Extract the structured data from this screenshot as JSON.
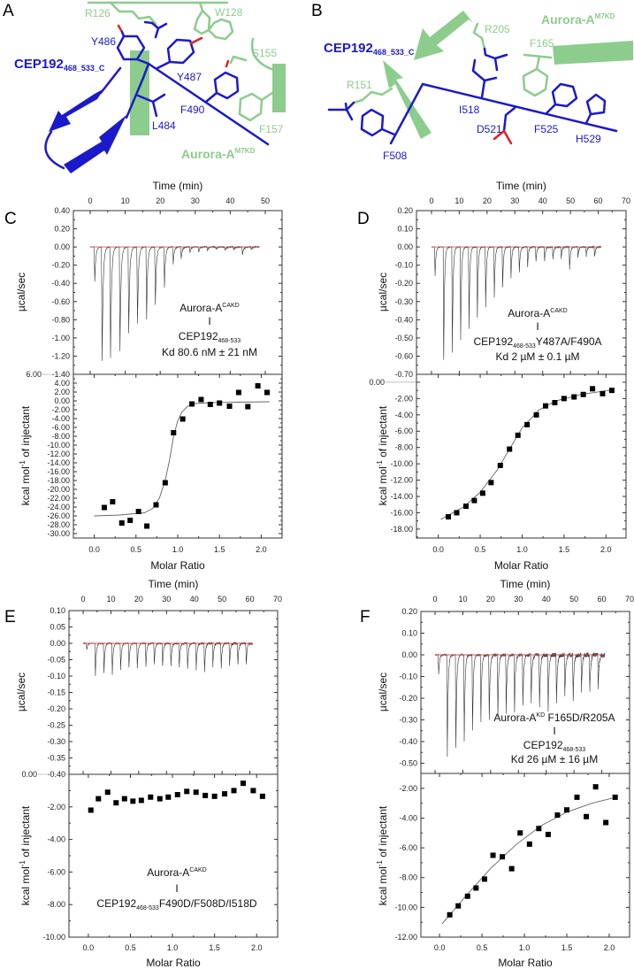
{
  "panel_a": {
    "letter": "A",
    "cep_label": "CEP192",
    "cep_sub": "468_533_C",
    "aurora_label": "Aurora-A",
    "aurora_sup": "M7KD",
    "residues": {
      "r126": "R126",
      "w128": "W128",
      "s155": "S155",
      "f157": "F157",
      "y486": "Y486",
      "y487": "Y487",
      "l484": "L484",
      "f490": "F490"
    }
  },
  "panel_b": {
    "letter": "B",
    "cep_label": "CEP192",
    "cep_sub": "468_533_C",
    "aurora_label": "Aurora-A",
    "aurora_sup": "M7KD",
    "residues": {
      "r205": "R205",
      "f165": "F165",
      "r151": "R151",
      "i518": "I518",
      "d521": "D521",
      "f525": "F525",
      "h529": "H529",
      "f508": "F508"
    }
  },
  "colors": {
    "cep192": "#1a1acc",
    "aurora": "#8ccc8c",
    "oxygen": "#e02020",
    "baseline": "#e05050",
    "trace": "#333333"
  },
  "chart_data": [
    {
      "panel": "C",
      "type": "scatter",
      "raw": {
        "type": "line",
        "xlabel": "Time (min)",
        "ylabel": "µcal/sec",
        "xlim": [
          -4.8,
          54.8
        ],
        "ylim": [
          -1.4,
          0.4
        ],
        "xticks": [
          "0",
          "10",
          "20",
          "30",
          "40",
          "50"
        ],
        "yticks": [
          "0.40",
          "0.20",
          "0.00",
          "-0.20",
          "-0.40",
          "-0.60",
          "-0.80",
          "-1.00",
          "-1.20",
          "-1.40"
        ],
        "injection_times": [
          1.1,
          3.2,
          5.6,
          8.3,
          10.8,
          13.3,
          15.9,
          18.4,
          21.0,
          23.5,
          25.8,
          28.3,
          30.8,
          33.3,
          35.8,
          38.3,
          40.8,
          43.3,
          45.8
        ],
        "peak_heights": [
          -0.38,
          -1.25,
          -1.22,
          -1.14,
          -0.95,
          -0.84,
          -0.8,
          -0.64,
          -0.44,
          -0.19,
          -0.13,
          -0.06,
          -0.05,
          -0.04,
          -0.03,
          -0.04,
          -0.03,
          -0.08,
          -0.03
        ]
      },
      "integrated": {
        "xlabel": "Molar Ratio",
        "ylabel": "kcal mol",
        "ylabel_sup": "-1",
        "ylabel_end": " of injectant",
        "xlim": [
          -0.25,
          2.25
        ],
        "ylim": [
          -31,
          6
        ],
        "xticks": [
          "0.0",
          "0.5",
          "1.0",
          "1.5",
          "2.0"
        ],
        "yticks": [
          "6.00",
          "4.00",
          "2.00",
          "0.00",
          "-2.00",
          "-4.00",
          "-6.00",
          "-8.00",
          "-10.00",
          "-12.00",
          "-14.00",
          "-16.00",
          "-18.00",
          "-20.00",
          "-22.00",
          "-24.00",
          "-26.00",
          "-28.00",
          "-30.00"
        ],
        "x": [
          0.12,
          0.22,
          0.33,
          0.43,
          0.53,
          0.63,
          0.74,
          0.85,
          0.95,
          1.06,
          1.17,
          1.28,
          1.39,
          1.5,
          1.62,
          1.73,
          1.84,
          1.96,
          2.07
        ],
        "y": [
          -24.1,
          -22.8,
          -27.6,
          -27.0,
          -25.0,
          -28.3,
          -23.5,
          -18.5,
          -7.2,
          -4.1,
          -0.7,
          0.3,
          -0.8,
          -0.5,
          -1.2,
          1.9,
          -1.3,
          3.4,
          1.9
        ],
        "fit": {
          "x": [
            0.0,
            0.3,
            0.6,
            0.7,
            0.78,
            0.85,
            0.9,
            0.95,
            1.0,
            1.05,
            1.12,
            1.2,
            1.4,
            1.7,
            2.1
          ],
          "y": [
            -26.0,
            -25.8,
            -25.3,
            -24.3,
            -22.0,
            -18.0,
            -13.5,
            -8.0,
            -4.5,
            -2.5,
            -1.2,
            -0.6,
            -0.4,
            -0.3,
            -0.2
          ]
        }
      },
      "annotation": {
        "line1": "Aurora-A",
        "line1_sup": "CAKD",
        "line2": "I",
        "line3": "CEP192",
        "line3_sub": "468-533",
        "line3_end": "",
        "line4": "Kd 80.6 nM ± 21 nM"
      }
    },
    {
      "panel": "D",
      "type": "scatter",
      "raw": {
        "type": "line",
        "xlabel": "Time (min)",
        "ylabel": "µcal/sec",
        "xlim": [
          -5.4,
          70
        ],
        "ylim": [
          -0.7,
          0.2
        ],
        "xticks": [
          "0",
          "10",
          "20",
          "30",
          "40",
          "50",
          "60",
          "70"
        ],
        "yticks": [
          "0.20",
          "0.10",
          "0.00",
          "-0.10",
          "-0.20",
          "-0.30",
          "-0.40",
          "-0.50",
          "-0.60",
          "-0.70"
        ],
        "injection_times": [
          1.1,
          4.2,
          7.3,
          10.3,
          13.3,
          16.3,
          19.3,
          22.4,
          25.4,
          28.4,
          31.4,
          34.4,
          37.4,
          40.5,
          43.5,
          46.5,
          49.5,
          52.5,
          55.5,
          58.5
        ],
        "peak_heights": [
          -0.16,
          -0.62,
          -0.58,
          -0.51,
          -0.45,
          -0.39,
          -0.33,
          -0.28,
          -0.22,
          -0.17,
          -0.14,
          -0.11,
          -0.08,
          -0.075,
          -0.07,
          -0.065,
          -0.12,
          -0.06,
          -0.05,
          -0.055
        ]
      },
      "integrated": {
        "xlabel": "Molar Ratio",
        "ylabel": "kcal mol",
        "ylabel_sup": "-1",
        "ylabel_end": " of injectant",
        "xlim": [
          -0.26,
          2.24
        ],
        "ylim": [
          -19.1,
          0.97
        ],
        "xticks": [
          "0.0",
          "0.5",
          "1.0",
          "1.5",
          "2.0"
        ],
        "yticks": [
          "0.00",
          "-2.00",
          "-4.00",
          "-6.00",
          "-8.00",
          "-10.00",
          "-12.00",
          "-14.00",
          "-16.00",
          "-18.00"
        ],
        "x": [
          0.12,
          0.22,
          0.33,
          0.43,
          0.53,
          0.63,
          0.74,
          0.85,
          0.95,
          1.06,
          1.17,
          1.28,
          1.39,
          1.5,
          1.62,
          1.73,
          1.84,
          1.96,
          2.07
        ],
        "y": [
          -16.5,
          -16.0,
          -15.2,
          -14.5,
          -13.6,
          -12.3,
          -10.2,
          -8.2,
          -6.5,
          -5.2,
          -4.0,
          -2.9,
          -2.5,
          -2.0,
          -1.8,
          -1.5,
          -0.8,
          -1.4,
          -1.0
        ],
        "fit": {
          "x": [
            0.03,
            0.3,
            0.5,
            0.7,
            0.85,
            1.0,
            1.2,
            1.4,
            1.7,
            2.1
          ],
          "y": [
            -16.8,
            -15.3,
            -13.5,
            -10.8,
            -8.2,
            -5.6,
            -3.4,
            -2.3,
            -1.5,
            -0.9
          ]
        }
      },
      "annotation": {
        "line1": "Aurora-A",
        "line1_sup": "CAKD",
        "line2": "I",
        "line3": "CEP192",
        "line3_sub": "468-533",
        "line3_end": "Y487A/F490A",
        "line4": "Kd  2 µM ± 0.1 µM"
      }
    },
    {
      "panel": "E",
      "type": "scatter",
      "raw": {
        "type": "line",
        "xlabel": "Time (min)",
        "ylabel": "µcal/sec",
        "xlim": [
          -5.1,
          70
        ],
        "ylim": [
          -0.4,
          0.1
        ],
        "xticks": [
          "0",
          "10",
          "20",
          "30",
          "40",
          "50",
          "60",
          "70"
        ],
        "yticks": [
          "0.10",
          "0.05",
          "0.00",
          "-0.05",
          "-0.10",
          "-0.15",
          "-0.20",
          "-0.25",
          "-0.30",
          "-0.35",
          "-0.40"
        ],
        "injection_times": [
          1.1,
          4.2,
          7.3,
          10.3,
          13.3,
          16.3,
          19.3,
          22.4,
          25.4,
          28.4,
          31.4,
          34.4,
          37.4,
          40.5,
          43.5,
          46.5,
          49.5,
          52.5,
          55.5,
          58.5
        ],
        "peak_heights": [
          -0.02,
          -0.1,
          -0.09,
          -0.095,
          -0.08,
          -0.075,
          -0.075,
          -0.07,
          -0.065,
          -0.07,
          -0.07,
          -0.075,
          -0.08,
          -0.08,
          -0.085,
          -0.07,
          -0.075,
          -0.07,
          -0.065,
          -0.065
        ]
      },
      "integrated": {
        "xlabel": "Molar Ratio",
        "ylabel": "kcal mol",
        "ylabel_sup": "-1",
        "ylabel_end": " of injectant",
        "xlim": [
          -0.23,
          2.25
        ],
        "ylim": [
          -10,
          0
        ],
        "xticks": [
          "0.0",
          "0.5",
          "1.0",
          "1.5",
          "2.0"
        ],
        "yticks": [
          "0.00",
          "-2.00",
          "-4.00",
          "-6.00",
          "-8.00",
          "-10.00"
        ],
        "x": [
          0.03,
          0.12,
          0.23,
          0.33,
          0.43,
          0.53,
          0.63,
          0.74,
          0.85,
          0.95,
          1.06,
          1.17,
          1.28,
          1.39,
          1.5,
          1.62,
          1.73,
          1.84,
          1.96,
          2.07
        ],
        "y": [
          -2.2,
          -1.5,
          -1.1,
          -1.75,
          -1.5,
          -1.65,
          -1.6,
          -1.4,
          -1.5,
          -1.4,
          -1.25,
          -1.05,
          -1.1,
          -1.3,
          -1.35,
          -1.2,
          -1.0,
          -0.55,
          -1.0,
          -1.35
        ]
      },
      "annotation": {
        "line1": "Aurora-A",
        "line1_sup": "CAKD",
        "line2": "I",
        "line3": "CEP192",
        "line3_sub": "468-533",
        "line3_end": "F490D/F508D/I518D"
      }
    },
    {
      "panel": "F",
      "type": "scatter",
      "raw": {
        "type": "line",
        "xlabel": "Time (min)",
        "ylabel": "µcal/sec",
        "xlim": [
          -5.1,
          70
        ],
        "ylim": [
          -0.547,
          0.2
        ],
        "xticks": [
          "0",
          "10",
          "20",
          "30",
          "40",
          "50",
          "60",
          "70"
        ],
        "yticks": [
          "0.20",
          "0.10",
          "0.00",
          "-0.10",
          "-0.20",
          "-0.30",
          "-0.40",
          "-0.50"
        ],
        "injection_times": [
          1.1,
          4.2,
          7.3,
          10.3,
          13.3,
          16.3,
          19.3,
          22.4,
          25.4,
          28.4,
          31.4,
          34.4,
          37.4,
          40.5,
          43.5,
          46.5,
          49.5,
          52.5,
          55.5,
          58.5
        ],
        "peak_heights": [
          -0.09,
          -0.47,
          -0.43,
          -0.4,
          -0.35,
          -0.31,
          -0.3,
          -0.28,
          -0.27,
          -0.26,
          -0.24,
          -0.22,
          -0.245,
          -0.26,
          -0.23,
          -0.19,
          -0.21,
          -0.17,
          -0.165,
          -0.16
        ]
      },
      "integrated": {
        "xlabel": "Molar Ratio",
        "ylabel": "kcal mol",
        "ylabel_sup": "-1",
        "ylabel_end": " of injectant",
        "xlim": [
          -0.22,
          2.24
        ],
        "ylim": [
          -12,
          -1.0
        ],
        "xticks": [
          "0.0",
          "0.5",
          "1.0",
          "1.5",
          "2.0"
        ],
        "yticks": [
          "-2.00",
          "-4.00",
          "-6.00",
          "-8.00",
          "-10.00",
          "-12.00"
        ],
        "x": [
          0.12,
          0.22,
          0.33,
          0.43,
          0.53,
          0.63,
          0.74,
          0.85,
          0.95,
          1.06,
          1.17,
          1.28,
          1.39,
          1.5,
          1.62,
          1.73,
          1.84,
          1.96,
          2.07
        ],
        "y": [
          -10.5,
          -9.9,
          -9.25,
          -8.7,
          -8.1,
          -6.5,
          -6.6,
          -7.4,
          -5.0,
          -5.75,
          -4.7,
          -5.1,
          -3.8,
          -3.45,
          -2.6,
          -3.9,
          -1.9,
          -4.3,
          -2.6
        ],
        "fit": {
          "x": [
            0.03,
            0.3,
            0.6,
            0.9,
            1.2,
            1.5,
            1.8,
            2.08
          ],
          "y": [
            -11.1,
            -9.3,
            -7.4,
            -5.8,
            -4.5,
            -3.6,
            -3.0,
            -2.6
          ]
        }
      },
      "annotation": {
        "line1": "Aurora-A",
        "line1_sup": "KD",
        "line1_end": " F165D/R205A",
        "line2": "I",
        "line3": "CEP192",
        "line3_sub": "468-533",
        "line3_end": "",
        "line4": "Kd  26 µM ± 16 µM"
      }
    }
  ]
}
